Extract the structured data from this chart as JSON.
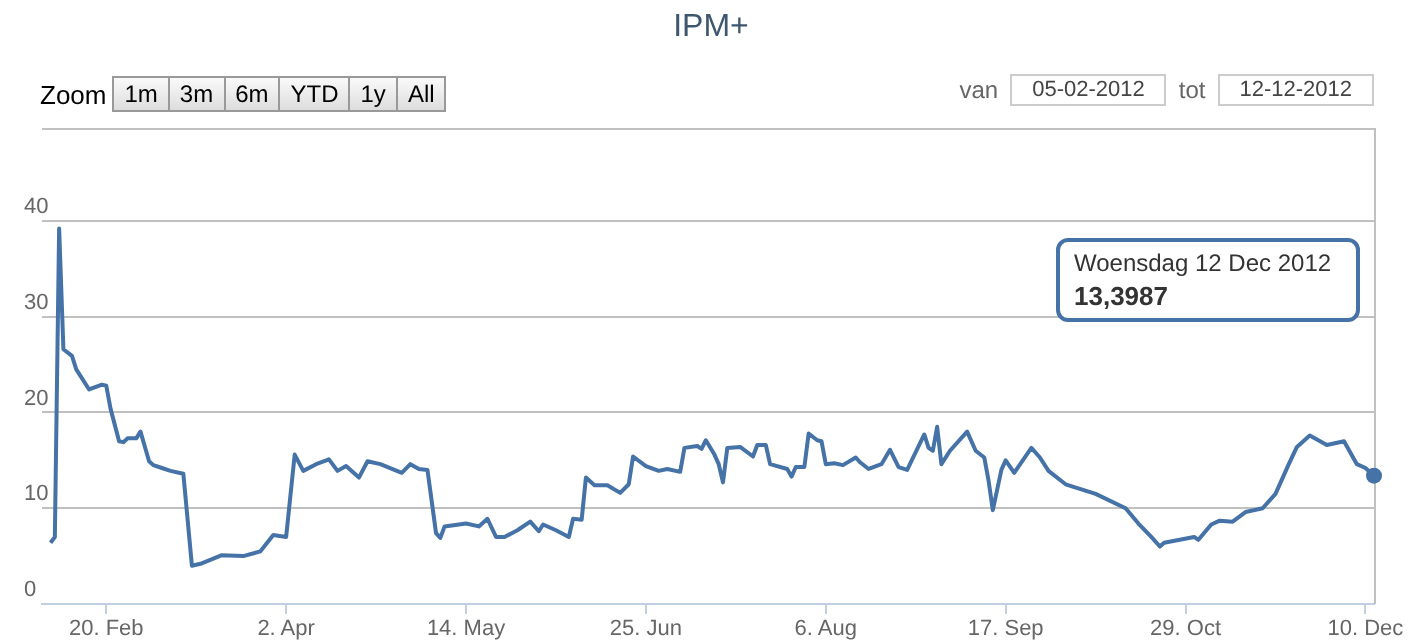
{
  "chart_data": {
    "type": "line",
    "title": "IPM+",
    "x": [
      "2012-02-07",
      "2012-02-08",
      "2012-02-09",
      "2012-02-10",
      "2012-02-12",
      "2012-02-13",
      "2012-02-16",
      "2012-02-19",
      "2012-02-20",
      "2012-02-21",
      "2012-02-23",
      "2012-02-24",
      "2012-02-25",
      "2012-02-27",
      "2012-02-28",
      "2012-03-01",
      "2012-03-02",
      "2012-03-04",
      "2012-03-06",
      "2012-03-09",
      "2012-03-11",
      "2012-03-13",
      "2012-03-18",
      "2012-03-23",
      "2012-03-27",
      "2012-03-30",
      "2012-04-02",
      "2012-04-04",
      "2012-04-06",
      "2012-04-09",
      "2012-04-12",
      "2012-04-14",
      "2012-04-16",
      "2012-04-19",
      "2012-04-21",
      "2012-04-24",
      "2012-04-29",
      "2012-05-01",
      "2012-05-03",
      "2012-05-05",
      "2012-05-07",
      "2012-05-08",
      "2012-05-09",
      "2012-05-14",
      "2012-05-17",
      "2012-05-19",
      "2012-05-21",
      "2012-05-23",
      "2012-05-26",
      "2012-05-29",
      "2012-05-31",
      "2012-06-01",
      "2012-06-04",
      "2012-06-07",
      "2012-06-08",
      "2012-06-10",
      "2012-06-11",
      "2012-06-13",
      "2012-06-16",
      "2012-06-19",
      "2012-06-21",
      "2012-06-22",
      "2012-06-25",
      "2012-06-28",
      "2012-06-30",
      "2012-07-03",
      "2012-07-04",
      "2012-07-07",
      "2012-07-08",
      "2012-07-09",
      "2012-07-11",
      "2012-07-12",
      "2012-07-13",
      "2012-07-14",
      "2012-07-17",
      "2012-07-20",
      "2012-07-21",
      "2012-07-23",
      "2012-07-24",
      "2012-07-28",
      "2012-07-29",
      "2012-07-30",
      "2012-08-01",
      "2012-08-02",
      "2012-08-04",
      "2012-08-05",
      "2012-08-06",
      "2012-08-08",
      "2012-08-10",
      "2012-08-13",
      "2012-08-14",
      "2012-08-16",
      "2012-08-19",
      "2012-08-21",
      "2012-08-23",
      "2012-08-25",
      "2012-08-29",
      "2012-08-30",
      "2012-08-31",
      "2012-09-01",
      "2012-09-02",
      "2012-09-04",
      "2012-09-08",
      "2012-09-10",
      "2012-09-12",
      "2012-09-13",
      "2012-09-14",
      "2012-09-16",
      "2012-09-17",
      "2012-09-19",
      "2012-09-23",
      "2012-09-25",
      "2012-09-27",
      "2012-10-01",
      "2012-10-08",
      "2012-10-15",
      "2012-10-18",
      "2012-10-21",
      "2012-10-23",
      "2012-10-24",
      "2012-10-31",
      "2012-11-01",
      "2012-11-04",
      "2012-11-06",
      "2012-11-09",
      "2012-11-12",
      "2012-11-16",
      "2012-11-19",
      "2012-11-22",
      "2012-11-24",
      "2012-11-27",
      "2012-12-01",
      "2012-12-05",
      "2012-12-08",
      "2012-12-10",
      "2012-12-12"
    ],
    "series": [
      {
        "color": "#4572a7",
        "values": [
          6.4,
          7.0,
          39.2,
          26.6,
          25.9,
          24.5,
          22.4,
          22.9,
          22.8,
          20.4,
          17.0,
          16.9,
          17.3,
          17.3,
          18.0,
          14.9,
          14.5,
          14.2,
          13.9,
          13.6,
          4.0,
          4.2,
          5.1,
          5.0,
          5.5,
          7.2,
          7.0,
          15.6,
          13.9,
          14.6,
          15.1,
          13.9,
          14.4,
          13.2,
          14.9,
          14.6,
          13.7,
          14.6,
          14.1,
          14.0,
          7.4,
          6.9,
          8.1,
          8.4,
          8.1,
          8.9,
          7.0,
          7.0,
          7.7,
          8.6,
          7.6,
          8.3,
          7.7,
          7.0,
          8.9,
          8.8,
          13.2,
          12.4,
          12.4,
          11.6,
          12.5,
          15.4,
          14.4,
          13.9,
          14.1,
          13.8,
          16.3,
          16.5,
          16.2,
          17.1,
          15.6,
          14.6,
          12.7,
          16.3,
          16.4,
          15.4,
          16.6,
          16.6,
          14.6,
          14.1,
          13.3,
          14.3,
          14.3,
          17.8,
          17.1,
          17.0,
          14.6,
          14.7,
          14.5,
          15.3,
          14.8,
          14.1,
          14.6,
          16.1,
          14.3,
          14.0,
          17.7,
          16.3,
          16.0,
          18.5,
          14.6,
          16.0,
          18.0,
          16.0,
          15.3,
          12.9,
          9.8,
          14.0,
          15.0,
          13.7,
          16.3,
          15.3,
          13.9,
          12.5,
          11.5,
          10.0,
          8.4,
          7.0,
          6.0,
          6.4,
          7.0,
          6.7,
          8.3,
          8.7,
          8.6,
          9.6,
          10.0,
          11.5,
          14.5,
          16.4,
          17.6,
          16.6,
          17.0,
          14.6,
          14.2,
          13.3987
        ]
      }
    ],
    "xlim": [
      "2012-02-05",
      "2012-12-12"
    ],
    "xticks": [
      {
        "value": "2012-02-20",
        "label": "20. Feb"
      },
      {
        "value": "2012-04-02",
        "label": "2. Apr"
      },
      {
        "value": "2012-05-14",
        "label": "14. May"
      },
      {
        "value": "2012-06-25",
        "label": "25. Jun"
      },
      {
        "value": "2012-08-06",
        "label": "6. Aug"
      },
      {
        "value": "2012-09-17",
        "label": "17. Sep"
      },
      {
        "value": "2012-10-29",
        "label": "29. Oct"
      },
      {
        "value": "2012-12-10",
        "label": "10. Dec"
      }
    ],
    "ylim": [
      0,
      49.7
    ],
    "yticks": [
      0,
      10,
      20,
      30,
      40
    ],
    "grid": "y",
    "marker": "none",
    "line_style": "solid",
    "legend": false,
    "annotations": [
      "Zoom",
      "1m",
      "3m",
      "6m",
      "YTD",
      "1y",
      "All",
      "van",
      "05-02-2012",
      "tot",
      "12-12-2012",
      "Woensdag 12 Dec 2012",
      "13,3987"
    ]
  }
}
